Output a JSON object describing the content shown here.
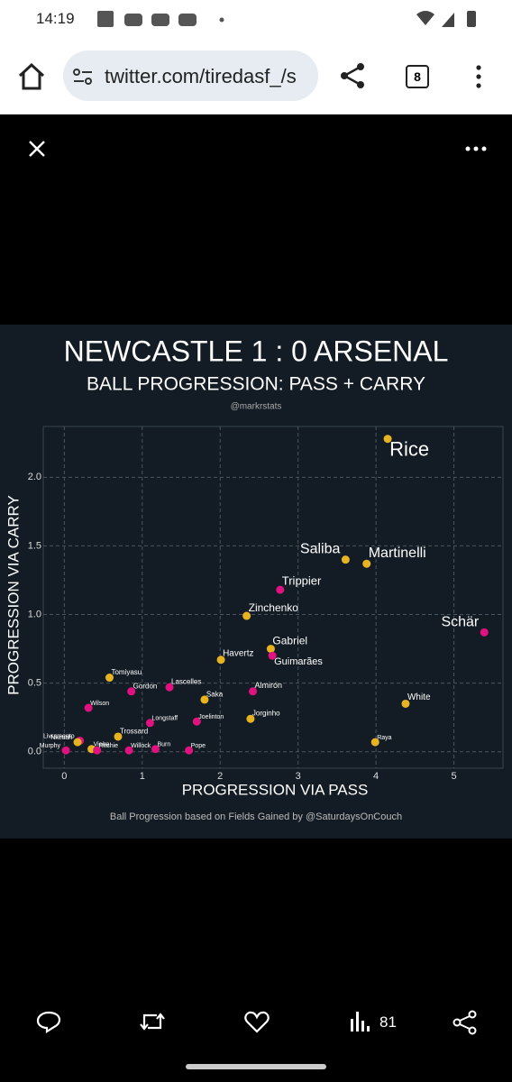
{
  "status_bar": {
    "time": "14:19"
  },
  "browser": {
    "url": "twitter.com/tiredasf_/s",
    "tab_count": "8"
  },
  "chart_data": {
    "type": "scatter",
    "title": "NEWCASTLE 1 : 0 ARSENAL",
    "subtitle": "BALL PROGRESSION: PASS + CARRY",
    "credit": "@markrstats",
    "x_label": "PROGRESSION VIA PASS",
    "y_label": "PROGRESSION VIA CARRY",
    "footnote": "Ball Progression based on Fields Gained by @SaturdaysOnCouch",
    "xlim": [
      -0.27,
      5.63
    ],
    "ylim": [
      -0.12,
      2.37
    ],
    "xticks": [
      0,
      1,
      2,
      3,
      4,
      5
    ],
    "yticks": [
      {
        "value": 0,
        "label": "0.0"
      },
      0.5,
      {
        "value": 1,
        "label": "1.0"
      },
      1.5,
      {
        "value": 2,
        "label": "2.0"
      }
    ],
    "grid": true,
    "points": [
      {
        "label": "Rice",
        "x": 4.15,
        "y": 2.28,
        "color": "#e8b321"
      },
      {
        "label": "Saliba",
        "x": 3.61,
        "y": 1.4,
        "color": "#e8b321"
      },
      {
        "label": "Martinelli",
        "x": 3.88,
        "y": 1.37,
        "color": "#e8b321"
      },
      {
        "label": "Trippier",
        "x": 2.77,
        "y": 1.18,
        "color": "#e0127f"
      },
      {
        "label": "Zinchenko",
        "x": 2.34,
        "y": 0.99,
        "color": "#e8b321"
      },
      {
        "label": "Schär",
        "x": 5.39,
        "y": 0.87,
        "color": "#e0127f"
      },
      {
        "label": "Gabriel",
        "x": 2.65,
        "y": 0.75,
        "color": "#e8b321"
      },
      {
        "label": "Guimarães",
        "x": 2.67,
        "y": 0.7,
        "color": "#e0127f"
      },
      {
        "label": "Havertz",
        "x": 2.01,
        "y": 0.67,
        "color": "#e8b321"
      },
      {
        "label": "Tomiyasu",
        "x": 0.58,
        "y": 0.54,
        "color": "#e8b321"
      },
      {
        "label": "Gordon",
        "x": 0.86,
        "y": 0.44,
        "color": "#e0127f"
      },
      {
        "label": "Lascelles",
        "x": 1.35,
        "y": 0.47,
        "color": "#e0127f"
      },
      {
        "label": "Almirón",
        "x": 2.42,
        "y": 0.44,
        "color": "#e0127f"
      },
      {
        "label": "Saka",
        "x": 1.8,
        "y": 0.38,
        "color": "#e8b321"
      },
      {
        "label": "White",
        "x": 4.38,
        "y": 0.35,
        "color": "#e8b321"
      },
      {
        "label": "Wilson",
        "x": 0.31,
        "y": 0.32,
        "color": "#e0127f"
      },
      {
        "label": "Longstaff",
        "x": 1.1,
        "y": 0.21,
        "color": "#e0127f"
      },
      {
        "label": "Joelinton",
        "x": 1.7,
        "y": 0.22,
        "color": "#e0127f"
      },
      {
        "label": "Jorginho",
        "x": 2.39,
        "y": 0.24,
        "color": "#e8b321"
      },
      {
        "label": "Trossard",
        "x": 0.69,
        "y": 0.11,
        "color": "#e8b321"
      },
      {
        "label": "Raya",
        "x": 3.99,
        "y": 0.07,
        "color": "#e8b321"
      },
      {
        "label": "Livramento",
        "x": 0.2,
        "y": 0.08,
        "color": "#e0127f"
      },
      {
        "label": "Nketiah",
        "x": 0.17,
        "y": 0.07,
        "color": "#e8b321"
      },
      {
        "label": "Vieira",
        "x": 0.35,
        "y": 0.02,
        "color": "#e8b321"
      },
      {
        "label": "Murphy",
        "x": 0.02,
        "y": 0.01,
        "color": "#e0127f"
      },
      {
        "label": "Ritchie",
        "x": 0.42,
        "y": 0.01,
        "color": "#e0127f"
      },
      {
        "label": "Willock",
        "x": 0.83,
        "y": 0.01,
        "color": "#e0127f"
      },
      {
        "label": "Burn",
        "x": 1.17,
        "y": 0.02,
        "color": "#e0127f"
      },
      {
        "label": "Pope",
        "x": 1.6,
        "y": 0.01,
        "color": "#e0127f"
      }
    ]
  },
  "tweet_bar": {
    "views": "81"
  }
}
